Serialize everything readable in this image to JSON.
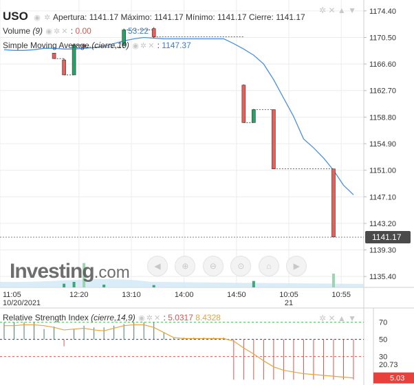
{
  "header": {
    "symbol": "USO",
    "ohlc_text": "Apertura: 1141.17 Máximo: 1141.17 Mínimo: 1141.17 Cierre: 1141.17",
    "volume_label": "Volume",
    "volume_param": "(9)",
    "volume_value": "0.00",
    "volume_right_value": "53.22",
    "sma_label": "Simple Moving Average",
    "sma_param": "(cierre,10)",
    "sma_value": "1147.37",
    "rsi_label": "Relative Strength Index",
    "rsi_param": "(cierre,14,9)",
    "rsi_value": "5.0317",
    "rsi_signal_value": "8.4328"
  },
  "logo": {
    "text": "Investing",
    "domain": ".com"
  },
  "icons": [
    "eye-icon",
    "gear-icon",
    "close-icon",
    "lock-icon",
    "chevron-down-icon",
    "home-icon",
    "fullscreen-icon"
  ],
  "nav_buttons": [
    "scroll-left",
    "zoom-in",
    "zoom-out",
    "scroll-right"
  ],
  "colors": {
    "up": "#26a269",
    "down": "#e8605a",
    "sma": "#4a90e2",
    "rsi": "#e8a33a",
    "rsi_hist_pos": "#2c6e9b",
    "rsi_hist_neg": "#d9534f",
    "level_70": "#3bb34a",
    "level_30": "#d9534f",
    "volume_bg": "#cfe8f6"
  },
  "chart_data": {
    "type": "candlestick",
    "price_axis": {
      "ticks": [
        "1174.40",
        "1170.50",
        "1166.60",
        "1162.70",
        "1158.80",
        "1154.90",
        "1151.00",
        "1147.10",
        "1143.20",
        "1139.30",
        "1135.40"
      ],
      "range": [
        1133.8,
        1176.0
      ],
      "last_price_label": "1141.17"
    },
    "x_axis": {
      "ticks": [
        {
          "label": "11:05",
          "sub": "10/20/2021",
          "pos": 0.0
        },
        {
          "label": "12:20",
          "sub": "",
          "pos": 0.217
        },
        {
          "label": "13:10",
          "sub": "",
          "pos": 0.361
        },
        {
          "label": "14:00",
          "sub": "",
          "pos": 0.506
        },
        {
          "label": "14:50",
          "sub": "",
          "pos": 0.65
        },
        {
          "label": "10:05",
          "sub": "21",
          "pos": 0.794
        },
        {
          "label": "10:55",
          "sub": "",
          "pos": 0.938
        }
      ]
    },
    "candles": [
      {
        "i": 5,
        "o": 1168.2,
        "h": 1168.2,
        "l": 1167.4,
        "c": 1167.4
      },
      {
        "i": 6,
        "o": 1167.2,
        "h": 1167.4,
        "l": 1165.0,
        "c": 1165.0
      },
      {
        "i": 7,
        "o": 1165.0,
        "h": 1169.6,
        "l": 1165.0,
        "c": 1169.4
      },
      {
        "i": 8,
        "o": 1169.4,
        "h": 1169.6,
        "l": 1169.0,
        "c": 1169.1
      },
      {
        "i": 12,
        "o": 1169.3,
        "h": 1171.8,
        "l": 1169.3,
        "c": 1171.6
      },
      {
        "i": 15,
        "o": 1171.8,
        "h": 1172.0,
        "l": 1170.4,
        "c": 1170.6
      },
      {
        "i": 24,
        "o": 1163.5,
        "h": 1163.6,
        "l": 1158.0,
        "c": 1158.0
      },
      {
        "i": 25,
        "o": 1158.0,
        "h": 1160.0,
        "l": 1158.0,
        "c": 1159.9
      },
      {
        "i": 27,
        "o": 1159.9,
        "h": 1159.9,
        "l": 1151.2,
        "c": 1151.2
      },
      {
        "i": 33,
        "o": 1151.2,
        "h": 1151.2,
        "l": 1141.2,
        "c": 1141.2
      }
    ],
    "sma": [
      {
        "i": 0,
        "v": 1168.7
      },
      {
        "i": 1,
        "v": 1168.6
      },
      {
        "i": 2,
        "v": 1168.6
      },
      {
        "i": 3,
        "v": 1168.7
      },
      {
        "i": 4,
        "v": 1168.9
      },
      {
        "i": 5,
        "v": 1168.9
      },
      {
        "i": 6,
        "v": 1168.8
      },
      {
        "i": 7,
        "v": 1168.8
      },
      {
        "i": 8,
        "v": 1168.9
      },
      {
        "i": 9,
        "v": 1169.0
      },
      {
        "i": 10,
        "v": 1169.2
      },
      {
        "i": 11,
        "v": 1169.6
      },
      {
        "i": 12,
        "v": 1170.0
      },
      {
        "i": 13,
        "v": 1170.3
      },
      {
        "i": 14,
        "v": 1170.5
      },
      {
        "i": 15,
        "v": 1170.4
      },
      {
        "i": 16,
        "v": 1170.3
      },
      {
        "i": 17,
        "v": 1170.3
      },
      {
        "i": 18,
        "v": 1170.3
      },
      {
        "i": 19,
        "v": 1170.3
      },
      {
        "i": 20,
        "v": 1170.3
      },
      {
        "i": 21,
        "v": 1170.3
      },
      {
        "i": 22,
        "v": 1170.3
      },
      {
        "i": 23,
        "v": 1169.6
      },
      {
        "i": 24,
        "v": 1168.8
      },
      {
        "i": 25,
        "v": 1167.9
      },
      {
        "i": 26,
        "v": 1166.6
      },
      {
        "i": 27,
        "v": 1164.3
      },
      {
        "i": 28,
        "v": 1161.6
      },
      {
        "i": 29,
        "v": 1158.9
      },
      {
        "i": 30,
        "v": 1155.6
      },
      {
        "i": 31,
        "v": 1154.3
      },
      {
        "i": 32,
        "v": 1152.8
      },
      {
        "i": 33,
        "v": 1151.0
      },
      {
        "i": 34,
        "v": 1148.8
      },
      {
        "i": 35,
        "v": 1147.4
      }
    ],
    "volume": [
      {
        "i": 6,
        "v": 8
      },
      {
        "i": 7,
        "v": 12
      },
      {
        "i": 8,
        "v": 53
      },
      {
        "i": 10,
        "v": 6
      },
      {
        "i": 15,
        "v": 5
      },
      {
        "i": 25,
        "v": 14
      },
      {
        "i": 33,
        "v": 30
      }
    ],
    "rsi_axis": {
      "ticks": [
        "70",
        "50",
        "30",
        "20.73"
      ],
      "last_label": "5.03",
      "range": [
        0,
        85
      ]
    },
    "rsi": [
      {
        "i": 0,
        "v": 66
      },
      {
        "i": 1,
        "v": 66
      },
      {
        "i": 2,
        "v": 67
      },
      {
        "i": 3,
        "v": 67
      },
      {
        "i": 4,
        "v": 66
      },
      {
        "i": 5,
        "v": 64
      },
      {
        "i": 6,
        "v": 61
      },
      {
        "i": 7,
        "v": 62
      },
      {
        "i": 8,
        "v": 63
      },
      {
        "i": 9,
        "v": 61
      },
      {
        "i": 10,
        "v": 60
      },
      {
        "i": 11,
        "v": 63
      },
      {
        "i": 12,
        "v": 66
      },
      {
        "i": 13,
        "v": 67
      },
      {
        "i": 14,
        "v": 67
      },
      {
        "i": 15,
        "v": 64
      },
      {
        "i": 16,
        "v": 58
      },
      {
        "i": 17,
        "v": 52
      },
      {
        "i": 18,
        "v": 51
      },
      {
        "i": 19,
        "v": 51
      },
      {
        "i": 20,
        "v": 51
      },
      {
        "i": 21,
        "v": 51
      },
      {
        "i": 22,
        "v": 51
      },
      {
        "i": 23,
        "v": 48
      },
      {
        "i": 24,
        "v": 40
      },
      {
        "i": 25,
        "v": 33
      },
      {
        "i": 26,
        "v": 25
      },
      {
        "i": 27,
        "v": 18
      },
      {
        "i": 28,
        "v": 14
      },
      {
        "i": 29,
        "v": 12
      },
      {
        "i": 30,
        "v": 10
      },
      {
        "i": 31,
        "v": 9
      },
      {
        "i": 32,
        "v": 8
      },
      {
        "i": 33,
        "v": 7
      },
      {
        "i": 34,
        "v": 6
      },
      {
        "i": 35,
        "v": 5
      }
    ],
    "rsi_hist": [
      {
        "i": 0,
        "v": 70
      },
      {
        "i": 1,
        "v": 70
      },
      {
        "i": 2,
        "v": 70
      },
      {
        "i": 3,
        "v": 70
      },
      {
        "i": 4,
        "v": 62
      },
      {
        "i": 5,
        "v": 65
      },
      {
        "i": 6,
        "v": 42
      },
      {
        "i": 7,
        "v": 62
      },
      {
        "i": 8,
        "v": 66
      },
      {
        "i": 9,
        "v": 64
      },
      {
        "i": 10,
        "v": 64
      },
      {
        "i": 11,
        "v": 66
      },
      {
        "i": 12,
        "v": 68
      },
      {
        "i": 13,
        "v": 70
      },
      {
        "i": 14,
        "v": 70
      },
      {
        "i": 15,
        "v": 70
      },
      {
        "i": 16,
        "v": 58
      },
      {
        "i": 17,
        "v": 52
      },
      {
        "i": 18,
        "v": 52
      },
      {
        "i": 19,
        "v": 52
      },
      {
        "i": 20,
        "v": 52
      },
      {
        "i": 21,
        "v": 52
      },
      {
        "i": 22,
        "v": 52
      },
      {
        "i": 23,
        "v": 3
      },
      {
        "i": 24,
        "v": 3
      },
      {
        "i": 25,
        "v": 3
      },
      {
        "i": 26,
        "v": 3
      },
      {
        "i": 27,
        "v": 3
      },
      {
        "i": 28,
        "v": 3
      },
      {
        "i": 29,
        "v": 3
      },
      {
        "i": 30,
        "v": 3
      },
      {
        "i": 31,
        "v": 3
      },
      {
        "i": 32,
        "v": 3
      },
      {
        "i": 33,
        "v": 3
      },
      {
        "i": 34,
        "v": 3
      },
      {
        "i": 35,
        "v": 3
      }
    ]
  }
}
